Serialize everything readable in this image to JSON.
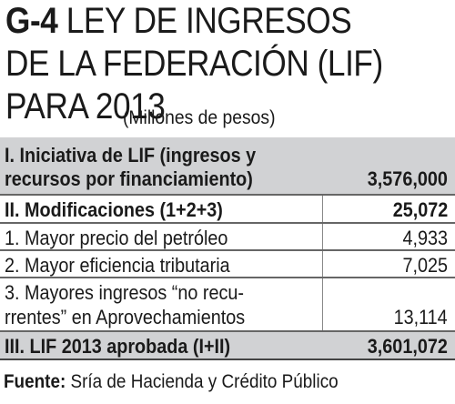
{
  "title": {
    "code": "G-4",
    "text": "LEY DE INGRESOS DE LA FEDERACIÓN (LIF) PARA 2013"
  },
  "subtitle": "(Millones de pesos)",
  "table": {
    "rows": [
      {
        "label_line1": "I. Iniciativa de LIF (ingresos y",
        "label_line2": "recursos por financiamiento)",
        "value": "3,576,000"
      },
      {
        "label": "II. Modificaciones (1+2+3)",
        "value": "25,072"
      },
      {
        "label": "1. Mayor precio del petróleo",
        "value": "4,933"
      },
      {
        "label": "2. Mayor eficiencia tributaria",
        "value": "7,025"
      },
      {
        "label_line1": "3. Mayores ingresos “no recu-",
        "label_line2": "rrentes” en Aprovechamientos",
        "value": "13,114"
      },
      {
        "label": "III. LIF 2013 aprobada (I+II)",
        "value": "3,601,072"
      }
    ]
  },
  "source": {
    "label": "Fuente:",
    "text": "Sría de Hacienda y Crédito Público"
  }
}
